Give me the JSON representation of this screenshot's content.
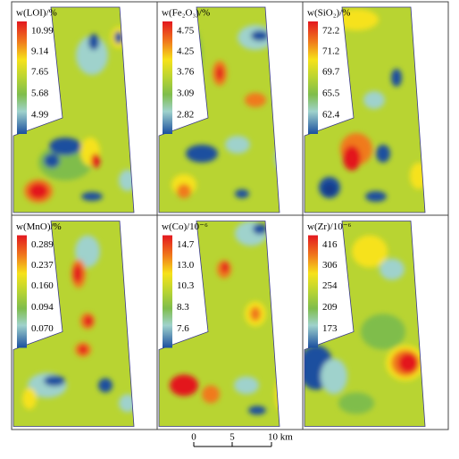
{
  "panels": [
    {
      "title": "w(LOI)/%",
      "legend": [
        "10.99",
        "9.14",
        "7.65",
        "5.68",
        "4.99"
      ]
    },
    {
      "title": "w(Fe₂O₃)/%",
      "legend": [
        "4.75",
        "4.25",
        "3.76",
        "3.09",
        "2.82"
      ]
    },
    {
      "title": "w(SiO₂)/%",
      "legend": [
        "72.2",
        "71.2",
        "69.7",
        "65.5",
        "62.4"
      ]
    },
    {
      "title": "w(MnO)/%",
      "legend": [
        "0.289",
        "0.237",
        "0.160",
        "0.094",
        "0.070"
      ]
    },
    {
      "title": "w(Co)/10⁻⁶",
      "legend": [
        "14.7",
        "13.0",
        "10.3",
        "8.3",
        "7.6"
      ]
    },
    {
      "title": "w(Zr)/10⁻⁶",
      "legend": [
        "416",
        "306",
        "254",
        "209",
        "173"
      ]
    }
  ],
  "scale_bar": {
    "labels": [
      "0",
      "5",
      "10 km"
    ]
  }
}
